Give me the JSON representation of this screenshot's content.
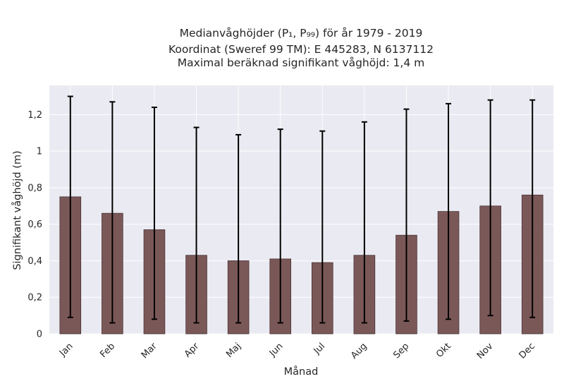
{
  "chart_data": {
    "type": "bar",
    "title_lines": [
      "Medianvåghöjder (P₁, P₉₉) för år 1979 - 2019",
      "Koordinat (Sweref 99 TM): E 445283, N 6137112",
      "Maximal beräknad signifikant våghöjd: 1,4 m"
    ],
    "xlabel": "Månad",
    "ylabel": "Signifikant våghöjd (m)",
    "categories": [
      "Jan",
      "Feb",
      "Mar",
      "Apr",
      "Maj",
      "Jun",
      "Jul",
      "Aug",
      "Sep",
      "Okt",
      "Nov",
      "Dec"
    ],
    "series": [
      {
        "values": [
          0.75,
          0.66,
          0.57,
          0.43,
          0.4,
          0.41,
          0.39,
          0.43,
          0.54,
          0.67,
          0.7,
          0.76
        ],
        "error_low": [
          0.09,
          0.06,
          0.08,
          0.06,
          0.06,
          0.06,
          0.06,
          0.06,
          0.07,
          0.08,
          0.1,
          0.09
        ],
        "error_high": [
          1.3,
          1.27,
          1.24,
          1.13,
          1.09,
          1.12,
          1.11,
          1.16,
          1.23,
          1.26,
          1.28,
          1.28
        ]
      }
    ],
    "ylim": [
      0,
      1.36
    ],
    "yticks": [
      0,
      0.2,
      0.4,
      0.6,
      0.8,
      1,
      1.2
    ],
    "ytick_labels": [
      "0",
      "0,2",
      "0,4",
      "0,6",
      "0,8",
      "1",
      "1,2"
    ],
    "grid": true,
    "colors": {
      "bar": "#7b5858",
      "bar_edge": "#4a3434",
      "error_bar": "#000000",
      "plot_background": "#eaeaf2",
      "grid": "#ffffff"
    }
  }
}
